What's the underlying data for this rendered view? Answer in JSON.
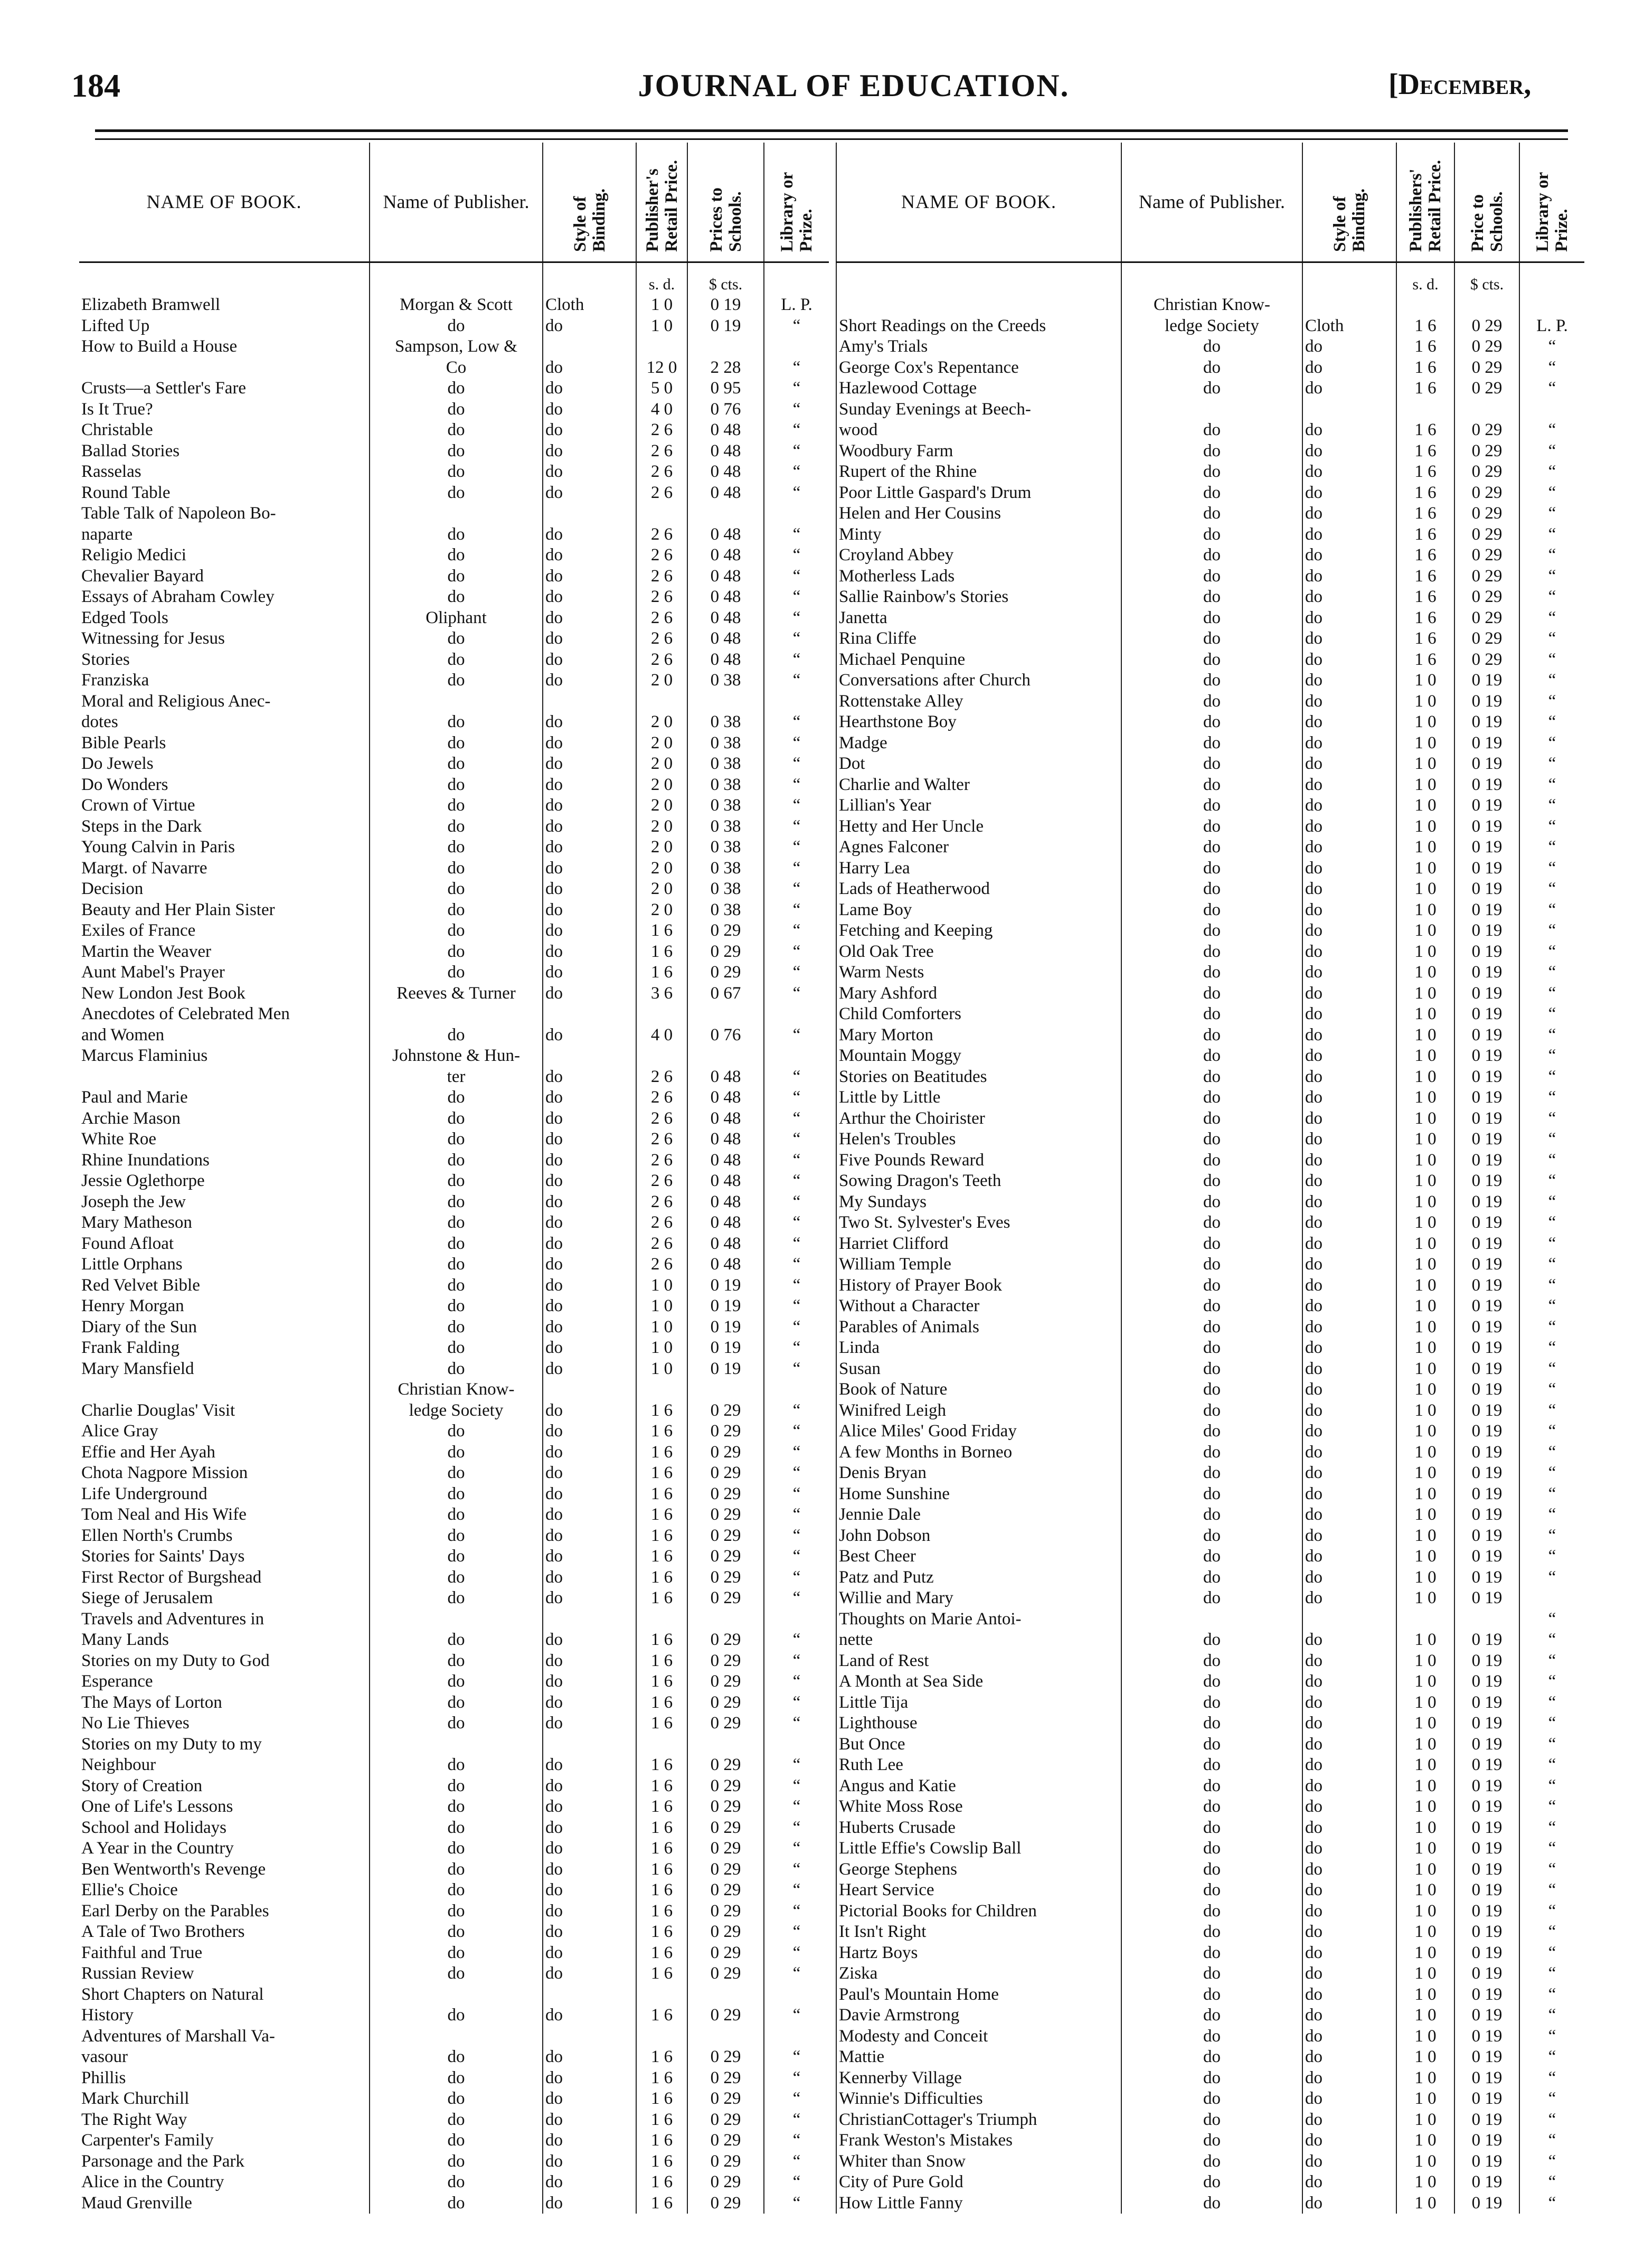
{
  "header": {
    "page_number": "184",
    "title": "JOURNAL OF EDUCATION.",
    "month": "[December,"
  },
  "columns_left": {
    "name": "NAME OF BOOK.",
    "publisher": "Name of Publisher.",
    "binding": "Style of Binding.",
    "retail": "Publisher's Retail Price.",
    "school": "Prices to Schools.",
    "library": "Library or Prize."
  },
  "columns_right": {
    "name": "NAME OF BOOK.",
    "publisher": "Name of Publisher.",
    "binding": "Style of Binding.",
    "retail": "Publishers' Retail Price.",
    "school": "Price to Schools.",
    "library": "Library or Prize."
  },
  "units": {
    "retail": "s. d.",
    "school": "$ cts."
  },
  "left_rows": [
    [
      "Elizabeth Bramwell",
      "Morgan & Scott",
      "Cloth",
      "1 0",
      "0 19",
      "L. P."
    ],
    [
      "Lifted Up",
      "do",
      "do",
      "1 0",
      "0 19",
      "“"
    ],
    [
      "How to Build a House",
      "Sampson, Low &",
      "",
      "",
      "",
      ""
    ],
    [
      "",
      "Co",
      "do",
      "12 0",
      "2 28",
      "“"
    ],
    [
      "Crusts—a Settler's Fare",
      "do",
      "do",
      "5 0",
      "0 95",
      "“"
    ],
    [
      "Is It True?",
      "do",
      "do",
      "4 0",
      "0 76",
      "“"
    ],
    [
      "Christable",
      "do",
      "do",
      "2 6",
      "0 48",
      "“"
    ],
    [
      "Ballad Stories",
      "do",
      "do",
      "2 6",
      "0 48",
      "“"
    ],
    [
      "Rasselas",
      "do",
      "do",
      "2 6",
      "0 48",
      "“"
    ],
    [
      "Round Table",
      "do",
      "do",
      "2 6",
      "0 48",
      "“"
    ],
    [
      "Table Talk of Napoleon Bo-",
      "",
      "",
      "",
      "",
      ""
    ],
    [
      "naparte",
      "do",
      "do",
      "2 6",
      "0 48",
      "“"
    ],
    [
      "Religio Medici",
      "do",
      "do",
      "2 6",
      "0 48",
      "“"
    ],
    [
      "Chevalier Bayard",
      "do",
      "do",
      "2 6",
      "0 48",
      "“"
    ],
    [
      "Essays of Abraham Cowley",
      "do",
      "do",
      "2 6",
      "0 48",
      "“"
    ],
    [
      "Edged Tools",
      "Oliphant",
      "do",
      "2 6",
      "0 48",
      "“"
    ],
    [
      "Witnessing for Jesus",
      "do",
      "do",
      "2 6",
      "0 48",
      "“"
    ],
    [
      "Stories",
      "do",
      "do",
      "2 6",
      "0 48",
      "“"
    ],
    [
      "Franziska",
      "do",
      "do",
      "2 0",
      "0 38",
      "“"
    ],
    [
      "Moral and Religious Anec-",
      "",
      "",
      "",
      "",
      ""
    ],
    [
      "dotes",
      "do",
      "do",
      "2 0",
      "0 38",
      "“"
    ],
    [
      "Bible Pearls",
      "do",
      "do",
      "2 0",
      "0 38",
      "“"
    ],
    [
      "Do Jewels",
      "do",
      "do",
      "2 0",
      "0 38",
      "“"
    ],
    [
      "Do Wonders",
      "do",
      "do",
      "2 0",
      "0 38",
      "“"
    ],
    [
      "Crown of Virtue",
      "do",
      "do",
      "2 0",
      "0 38",
      "“"
    ],
    [
      "Steps in the Dark",
      "do",
      "do",
      "2 0",
      "0 38",
      "“"
    ],
    [
      "Young Calvin in Paris",
      "do",
      "do",
      "2 0",
      "0 38",
      "“"
    ],
    [
      "Margt. of Navarre",
      "do",
      "do",
      "2 0",
      "0 38",
      "“"
    ],
    [
      "Decision",
      "do",
      "do",
      "2 0",
      "0 38",
      "“"
    ],
    [
      "Beauty and Her Plain Sister",
      "do",
      "do",
      "2 0",
      "0 38",
      "“"
    ],
    [
      "Exiles of France",
      "do",
      "do",
      "1 6",
      "0 29",
      "“"
    ],
    [
      "Martin the Weaver",
      "do",
      "do",
      "1 6",
      "0 29",
      "“"
    ],
    [
      "Aunt Mabel's Prayer",
      "do",
      "do",
      "1 6",
      "0 29",
      "“"
    ],
    [
      "New London Jest Book",
      "Reeves & Turner",
      "do",
      "3 6",
      "0 67",
      "“"
    ],
    [
      "Anecdotes of Celebrated Men",
      "",
      "",
      "",
      "",
      ""
    ],
    [
      "and Women",
      "do",
      "do",
      "4 0",
      "0 76",
      "“"
    ],
    [
      "Marcus Flaminius",
      "Johnstone & Hun-",
      "",
      "",
      "",
      ""
    ],
    [
      "",
      "ter",
      "do",
      "2 6",
      "0 48",
      "“"
    ],
    [
      "Paul and Marie",
      "do",
      "do",
      "2 6",
      "0 48",
      "“"
    ],
    [
      "Archie Mason",
      "do",
      "do",
      "2 6",
      "0 48",
      "“"
    ],
    [
      "White Roe",
      "do",
      "do",
      "2 6",
      "0 48",
      "“"
    ],
    [
      "Rhine Inundations",
      "do",
      "do",
      "2 6",
      "0 48",
      "“"
    ],
    [
      "Jessie Oglethorpe",
      "do",
      "do",
      "2 6",
      "0 48",
      "“"
    ],
    [
      "Joseph the Jew",
      "do",
      "do",
      "2 6",
      "0 48",
      "“"
    ],
    [
      "Mary Matheson",
      "do",
      "do",
      "2 6",
      "0 48",
      "“"
    ],
    [
      "Found Afloat",
      "do",
      "do",
      "2 6",
      "0 48",
      "“"
    ],
    [
      "Little Orphans",
      "do",
      "do",
      "2 6",
      "0 48",
      "“"
    ],
    [
      "Red Velvet Bible",
      "do",
      "do",
      "1 0",
      "0 19",
      "“"
    ],
    [
      "Henry Morgan",
      "do",
      "do",
      "1 0",
      "0 19",
      "“"
    ],
    [
      "Diary of the Sun",
      "do",
      "do",
      "1 0",
      "0 19",
      "“"
    ],
    [
      "Frank Falding",
      "do",
      "do",
      "1 0",
      "0 19",
      "“"
    ],
    [
      "Mary Mansfield",
      "do",
      "do",
      "1 0",
      "0 19",
      "“"
    ],
    [
      "",
      "Christian Know-",
      "",
      "",
      "",
      ""
    ],
    [
      "Charlie Douglas' Visit",
      "ledge Society",
      "do",
      "1 6",
      "0 29",
      "“"
    ],
    [
      "Alice Gray",
      "do",
      "do",
      "1 6",
      "0 29",
      "“"
    ],
    [
      "Effie and Her Ayah",
      "do",
      "do",
      "1 6",
      "0 29",
      "“"
    ],
    [
      "Chota Nagpore Mission",
      "do",
      "do",
      "1 6",
      "0 29",
      "“"
    ],
    [
      "Life Underground",
      "do",
      "do",
      "1 6",
      "0 29",
      "“"
    ],
    [
      "Tom Neal and His Wife",
      "do",
      "do",
      "1 6",
      "0 29",
      "“"
    ],
    [
      "Ellen North's Crumbs",
      "do",
      "do",
      "1 6",
      "0 29",
      "“"
    ],
    [
      "Stories for Saints' Days",
      "do",
      "do",
      "1 6",
      "0 29",
      "“"
    ],
    [
      "First Rector of Burgshead",
      "do",
      "do",
      "1 6",
      "0 29",
      "“"
    ],
    [
      "Siege of Jerusalem",
      "do",
      "do",
      "1 6",
      "0 29",
      "“"
    ],
    [
      "Travels and Adventures in",
      "",
      "",
      "",
      "",
      ""
    ],
    [
      "Many Lands",
      "do",
      "do",
      "1 6",
      "0 29",
      "“"
    ],
    [
      "Stories on my Duty to God",
      "do",
      "do",
      "1 6",
      "0 29",
      "“"
    ],
    [
      "Esperance",
      "do",
      "do",
      "1 6",
      "0 29",
      "“"
    ],
    [
      "The Mays of Lorton",
      "do",
      "do",
      "1 6",
      "0 29",
      "“"
    ],
    [
      "No Lie Thieves",
      "do",
      "do",
      "1 6",
      "0 29",
      "“"
    ],
    [
      "Stories on my Duty to my",
      "",
      "",
      "",
      "",
      ""
    ],
    [
      "Neighbour",
      "do",
      "do",
      "1 6",
      "0 29",
      "“"
    ],
    [
      "Story of Creation",
      "do",
      "do",
      "1 6",
      "0 29",
      "“"
    ],
    [
      "One of Life's Lessons",
      "do",
      "do",
      "1 6",
      "0 29",
      "“"
    ],
    [
      "School and Holidays",
      "do",
      "do",
      "1 6",
      "0 29",
      "“"
    ],
    [
      "A Year in the Country",
      "do",
      "do",
      "1 6",
      "0 29",
      "“"
    ],
    [
      "Ben Wentworth's Revenge",
      "do",
      "do",
      "1 6",
      "0 29",
      "“"
    ],
    [
      "Ellie's Choice",
      "do",
      "do",
      "1 6",
      "0 29",
      "“"
    ],
    [
      "Earl Derby on the Parables",
      "do",
      "do",
      "1 6",
      "0 29",
      "“"
    ],
    [
      "A Tale of Two Brothers",
      "do",
      "do",
      "1 6",
      "0 29",
      "“"
    ],
    [
      "Faithful and True",
      "do",
      "do",
      "1 6",
      "0 29",
      "“"
    ],
    [
      "Russian Review",
      "do",
      "do",
      "1 6",
      "0 29",
      "“"
    ],
    [
      "Short Chapters on Natural",
      "",
      "",
      "",
      "",
      ""
    ],
    [
      "History",
      "do",
      "do",
      "1 6",
      "0 29",
      "“"
    ],
    [
      "Adventures of Marshall Va-",
      "",
      "",
      "",
      "",
      ""
    ],
    [
      "vasour",
      "do",
      "do",
      "1 6",
      "0 29",
      "“"
    ],
    [
      "Phillis",
      "do",
      "do",
      "1 6",
      "0 29",
      "“"
    ],
    [
      "Mark Churchill",
      "do",
      "do",
      "1 6",
      "0 29",
      "“"
    ],
    [
      "The Right Way",
      "do",
      "do",
      "1 6",
      "0 29",
      "“"
    ],
    [
      "Carpenter's Family",
      "do",
      "do",
      "1 6",
      "0 29",
      "“"
    ],
    [
      "Parsonage and the Park",
      "do",
      "do",
      "1 6",
      "0 29",
      "“"
    ],
    [
      "Alice in the Country",
      "do",
      "do",
      "1 6",
      "0 29",
      "“"
    ],
    [
      "Maud Grenville",
      "do",
      "do",
      "1 6",
      "0 29",
      "“"
    ]
  ],
  "right_rows": [
    [
      "",
      "Christian Know-",
      "",
      "",
      "",
      ""
    ],
    [
      "Short Readings on the Creeds",
      "ledge Society",
      "Cloth",
      "1 6",
      "0 29",
      "L. P."
    ],
    [
      "Amy's Trials",
      "do",
      "do",
      "1 6",
      "0 29",
      "“"
    ],
    [
      "George Cox's Repentance",
      "do",
      "do",
      "1 6",
      "0 29",
      "“"
    ],
    [
      "Hazlewood Cottage",
      "do",
      "do",
      "1 6",
      "0 29",
      "“"
    ],
    [
      "Sunday Evenings at Beech-",
      "",
      "",
      "",
      "",
      ""
    ],
    [
      "wood",
      "do",
      "do",
      "1 6",
      "0 29",
      "“"
    ],
    [
      "Woodbury Farm",
      "do",
      "do",
      "1 6",
      "0 29",
      "“"
    ],
    [
      "Rupert of the Rhine",
      "do",
      "do",
      "1 6",
      "0 29",
      "“"
    ],
    [
      "Poor Little Gaspard's Drum",
      "do",
      "do",
      "1 6",
      "0 29",
      "“"
    ],
    [
      "Helen and Her Cousins",
      "do",
      "do",
      "1 6",
      "0 29",
      "“"
    ],
    [
      "Minty",
      "do",
      "do",
      "1 6",
      "0 29",
      "“"
    ],
    [
      "Croyland Abbey",
      "do",
      "do",
      "1 6",
      "0 29",
      "“"
    ],
    [
      "Motherless Lads",
      "do",
      "do",
      "1 6",
      "0 29",
      "“"
    ],
    [
      "Sallie Rainbow's Stories",
      "do",
      "do",
      "1 6",
      "0 29",
      "“"
    ],
    [
      "Janetta",
      "do",
      "do",
      "1 6",
      "0 29",
      "“"
    ],
    [
      "Rina Cliffe",
      "do",
      "do",
      "1 6",
      "0 29",
      "“"
    ],
    [
      "Michael Penquine",
      "do",
      "do",
      "1 6",
      "0 29",
      "“"
    ],
    [
      "Conversations after Church",
      "do",
      "do",
      "1 0",
      "0 19",
      "“"
    ],
    [
      "Rottenstake Alley",
      "do",
      "do",
      "1 0",
      "0 19",
      "“"
    ],
    [
      "Hearthstone Boy",
      "do",
      "do",
      "1 0",
      "0 19",
      "“"
    ],
    [
      "Madge",
      "do",
      "do",
      "1 0",
      "0 19",
      "“"
    ],
    [
      "Dot",
      "do",
      "do",
      "1 0",
      "0 19",
      "“"
    ],
    [
      "Charlie and Walter",
      "do",
      "do",
      "1 0",
      "0 19",
      "“"
    ],
    [
      "Lillian's Year",
      "do",
      "do",
      "1 0",
      "0 19",
      "“"
    ],
    [
      "Hetty and Her Uncle",
      "do",
      "do",
      "1 0",
      "0 19",
      "“"
    ],
    [
      "Agnes Falconer",
      "do",
      "do",
      "1 0",
      "0 19",
      "“"
    ],
    [
      "Harry Lea",
      "do",
      "do",
      "1 0",
      "0 19",
      "“"
    ],
    [
      "Lads of Heatherwood",
      "do",
      "do",
      "1 0",
      "0 19",
      "“"
    ],
    [
      "Lame Boy",
      "do",
      "do",
      "1 0",
      "0 19",
      "“"
    ],
    [
      "Fetching and Keeping",
      "do",
      "do",
      "1 0",
      "0 19",
      "“"
    ],
    [
      "Old Oak Tree",
      "do",
      "do",
      "1 0",
      "0 19",
      "“"
    ],
    [
      "Warm Nests",
      "do",
      "do",
      "1 0",
      "0 19",
      "“"
    ],
    [
      "Mary Ashford",
      "do",
      "do",
      "1 0",
      "0 19",
      "“"
    ],
    [
      "Child Comforters",
      "do",
      "do",
      "1 0",
      "0 19",
      "“"
    ],
    [
      "Mary Morton",
      "do",
      "do",
      "1 0",
      "0 19",
      "“"
    ],
    [
      "Mountain Moggy",
      "do",
      "do",
      "1 0",
      "0 19",
      "“"
    ],
    [
      "Stories on Beatitudes",
      "do",
      "do",
      "1 0",
      "0 19",
      "“"
    ],
    [
      "Little by Little",
      "do",
      "do",
      "1 0",
      "0 19",
      "“"
    ],
    [
      "Arthur the Choirister",
      "do",
      "do",
      "1 0",
      "0 19",
      "“"
    ],
    [
      "Helen's Troubles",
      "do",
      "do",
      "1 0",
      "0 19",
      "“"
    ],
    [
      "Five Pounds Reward",
      "do",
      "do",
      "1 0",
      "0 19",
      "“"
    ],
    [
      "Sowing Dragon's Teeth",
      "do",
      "do",
      "1 0",
      "0 19",
      "“"
    ],
    [
      "My Sundays",
      "do",
      "do",
      "1 0",
      "0 19",
      "“"
    ],
    [
      "Two St. Sylvester's Eves",
      "do",
      "do",
      "1 0",
      "0 19",
      "“"
    ],
    [
      "Harriet Clifford",
      "do",
      "do",
      "1 0",
      "0 19",
      "“"
    ],
    [
      "William Temple",
      "do",
      "do",
      "1 0",
      "0 19",
      "“"
    ],
    [
      "History of Prayer Book",
      "do",
      "do",
      "1 0",
      "0 19",
      "“"
    ],
    [
      "Without a Character",
      "do",
      "do",
      "1 0",
      "0 19",
      "“"
    ],
    [
      "Parables of Animals",
      "do",
      "do",
      "1 0",
      "0 19",
      "“"
    ],
    [
      "Linda",
      "do",
      "do",
      "1 0",
      "0 19",
      "“"
    ],
    [
      "Susan",
      "do",
      "do",
      "1 0",
      "0 19",
      "“"
    ],
    [
      "Book of Nature",
      "do",
      "do",
      "1 0",
      "0 19",
      "“"
    ],
    [
      "Winifred Leigh",
      "do",
      "do",
      "1 0",
      "0 19",
      "“"
    ],
    [
      "Alice Miles' Good Friday",
      "do",
      "do",
      "1 0",
      "0 19",
      "“"
    ],
    [
      "A few Months in Borneo",
      "do",
      "do",
      "1 0",
      "0 19",
      "“"
    ],
    [
      "Denis Bryan",
      "do",
      "do",
      "1 0",
      "0 19",
      "“"
    ],
    [
      "Home Sunshine",
      "do",
      "do",
      "1 0",
      "0 19",
      "“"
    ],
    [
      "Jennie Dale",
      "do",
      "do",
      "1 0",
      "0 19",
      "“"
    ],
    [
      "John Dobson",
      "do",
      "do",
      "1 0",
      "0 19",
      "“"
    ],
    [
      "Best Cheer",
      "do",
      "do",
      "1 0",
      "0 19",
      "“"
    ],
    [
      "Patz and Putz",
      "do",
      "do",
      "1 0",
      "0 19",
      "“"
    ],
    [
      "Willie and Mary",
      "do",
      "do",
      "1 0",
      "0 19",
      ""
    ],
    [
      "Thoughts on Marie Antoi-",
      "",
      "",
      "",
      "",
      "“"
    ],
    [
      "nette",
      "do",
      "do",
      "1 0",
      "0 19",
      "“"
    ],
    [
      "Land of Rest",
      "do",
      "do",
      "1 0",
      "0 19",
      "“"
    ],
    [
      "A Month at Sea Side",
      "do",
      "do",
      "1 0",
      "0 19",
      "“"
    ],
    [
      "Little Tija",
      "do",
      "do",
      "1 0",
      "0 19",
      "“"
    ],
    [
      "Lighthouse",
      "do",
      "do",
      "1 0",
      "0 19",
      "“"
    ],
    [
      "But Once",
      "do",
      "do",
      "1 0",
      "0 19",
      "“"
    ],
    [
      "Ruth Lee",
      "do",
      "do",
      "1 0",
      "0 19",
      "“"
    ],
    [
      "Angus and Katie",
      "do",
      "do",
      "1 0",
      "0 19",
      "“"
    ],
    [
      "White Moss Rose",
      "do",
      "do",
      "1 0",
      "0 19",
      "“"
    ],
    [
      "Huberts Crusade",
      "do",
      "do",
      "1 0",
      "0 19",
      "“"
    ],
    [
      "Little Effie's Cowslip Ball",
      "do",
      "do",
      "1 0",
      "0 19",
      "“"
    ],
    [
      "George Stephens",
      "do",
      "do",
      "1 0",
      "0 19",
      "“"
    ],
    [
      "Heart Service",
      "do",
      "do",
      "1 0",
      "0 19",
      "“"
    ],
    [
      "Pictorial Books for Children",
      "do",
      "do",
      "1 0",
      "0 19",
      "“"
    ],
    [
      "It Isn't Right",
      "do",
      "do",
      "1 0",
      "0 19",
      "“"
    ],
    [
      "Hartz Boys",
      "do",
      "do",
      "1 0",
      "0 19",
      "“"
    ],
    [
      "Ziska",
      "do",
      "do",
      "1 0",
      "0 19",
      "“"
    ],
    [
      "Paul's Mountain Home",
      "do",
      "do",
      "1 0",
      "0 19",
      "“"
    ],
    [
      "Davie Armstrong",
      "do",
      "do",
      "1 0",
      "0 19",
      "“"
    ],
    [
      "Modesty and Conceit",
      "do",
      "do",
      "1 0",
      "0 19",
      "“"
    ],
    [
      "Mattie",
      "do",
      "do",
      "1 0",
      "0 19",
      "“"
    ],
    [
      "Kennerby Village",
      "do",
      "do",
      "1 0",
      "0 19",
      "“"
    ],
    [
      "Winnie's Difficulties",
      "do",
      "do",
      "1 0",
      "0 19",
      "“"
    ],
    [
      "ChristianCottager's Triumph",
      "do",
      "do",
      "1 0",
      "0 19",
      "“"
    ],
    [
      "Frank Weston's Mistakes",
      "do",
      "do",
      "1 0",
      "0 19",
      "“"
    ],
    [
      "Whiter than Snow",
      "do",
      "do",
      "1 0",
      "0 19",
      "“"
    ],
    [
      "City of Pure Gold",
      "do",
      "do",
      "1 0",
      "0 19",
      "“"
    ],
    [
      "How Little Fanny",
      "do",
      "do",
      "1 0",
      "0 19",
      "“"
    ]
  ]
}
